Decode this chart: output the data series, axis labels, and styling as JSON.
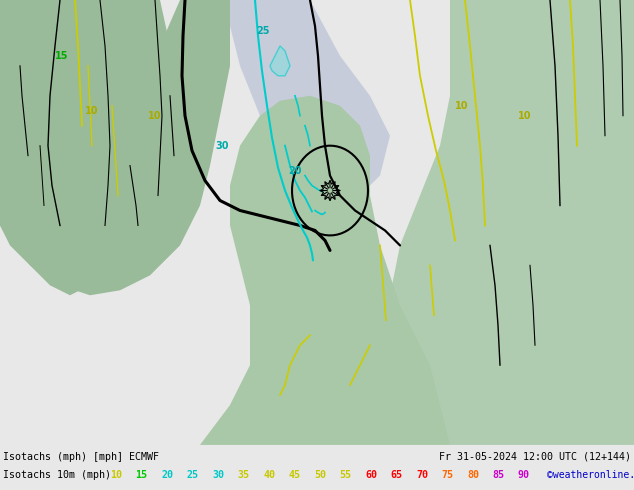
{
  "title_line1": "Isotachs (mph) [mph] ECMWF",
  "title_line2": "Fr 31-05-2024 12:00 UTC (12+144)",
  "subtitle": "Isotachs 10m (mph)",
  "copyright": "©weatheronline.co.uk",
  "legend_values": [
    "10",
    "15",
    "20",
    "25",
    "30",
    "35",
    "40",
    "45",
    "50",
    "55",
    "60",
    "65",
    "70",
    "75",
    "80",
    "85",
    "90"
  ],
  "legend_colors": [
    "#c8c800",
    "#00c800",
    "#00c8c8",
    "#00c8c8",
    "#00c8c8",
    "#c8c800",
    "#c8c800",
    "#c8c800",
    "#c8c800",
    "#c8c800",
    "#ff0000",
    "#ff0000",
    "#ff0000",
    "#ff6600",
    "#ff6600",
    "#cc00cc",
    "#cc00cc"
  ],
  "bg_color": "#b8ddb8",
  "bottom_bar_color": "#e8e8e8",
  "fig_width": 6.34,
  "fig_height": 4.9,
  "map_bg": "#aaccaa",
  "sea_color": "#c8c8d8",
  "dark_land": "#88bb88"
}
